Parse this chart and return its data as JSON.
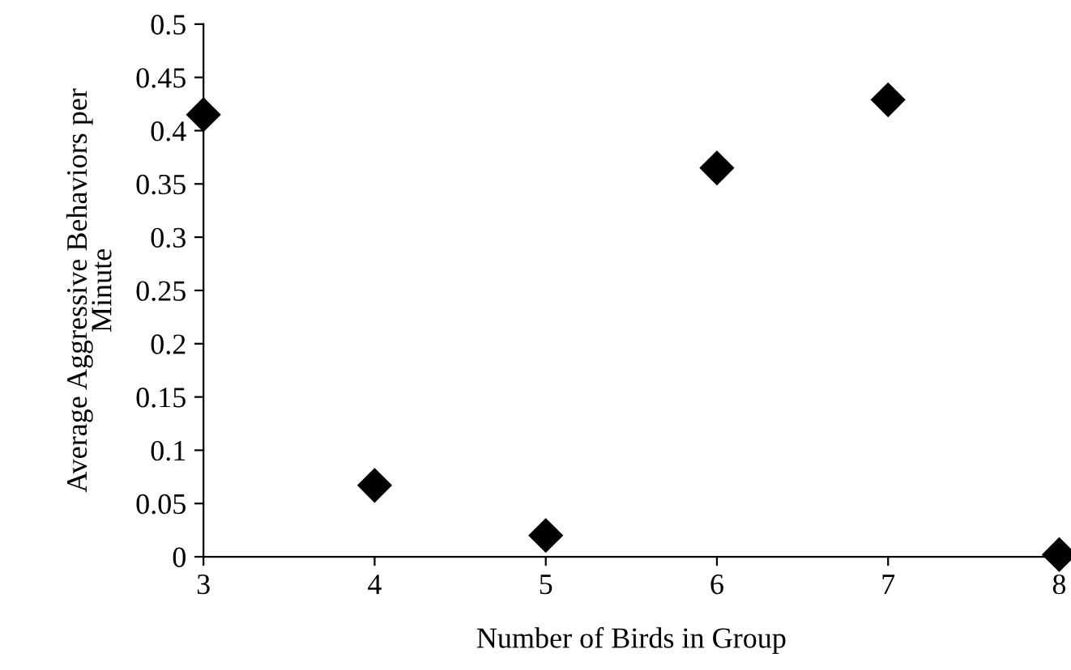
{
  "chart_data": {
    "type": "scatter",
    "xlabel": "Number of Birds in Group",
    "ylabel": "Average Aggressive Behaviors per Minute",
    "x": [
      3,
      4,
      5,
      6,
      7,
      8
    ],
    "series": [
      {
        "color": "#000000",
        "values": [
          0.415,
          0.067,
          0.02,
          0.365,
          0.429,
          0.002
        ]
      }
    ],
    "marker": "diamond",
    "xlim": [
      3,
      8
    ],
    "xticks": [
      3,
      4,
      5,
      6,
      7,
      8
    ],
    "ylim": [
      0,
      0.5
    ],
    "yticks": [
      0,
      0.05,
      0.1,
      0.15,
      0.2,
      0.25,
      0.3,
      0.35,
      0.4,
      0.45,
      0.5
    ],
    "grid": false,
    "legend": false
  }
}
